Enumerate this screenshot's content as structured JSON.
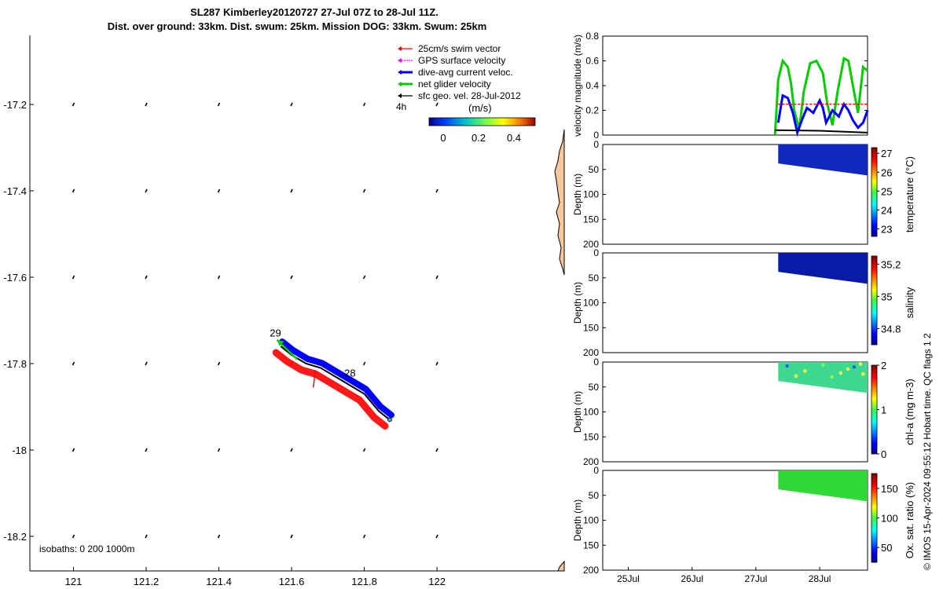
{
  "title_line1": "SL287 Kimberley20120727 27-Jul 07Z to 28-Jul 11Z.",
  "title_line2": "Dist. over ground: 33km. Dist. swum: 25km. Mission DOG: 33km. Swum: 25km",
  "side_note": "© IMOS 15-Apr-2024 09:55:12 Hobart time. QC flags 1  2",
  "colors": {
    "swim": "#ff0000",
    "gps": "#ff00ff",
    "current": "#0000ff",
    "net": "#00cc00",
    "geo": "#000000",
    "land": "#f8c89c",
    "point": "#2bc0c0"
  },
  "chart_data": [
    {
      "id": "map",
      "type": "scatter",
      "title": "",
      "xlabel": "",
      "ylabel": "",
      "xlim": [
        120.88,
        122.35
      ],
      "ylim": [
        -18.28,
        -17.04
      ],
      "xticks": [
        121,
        121.2,
        121.4,
        121.6,
        121.8,
        122
      ],
      "xtick_labels": [
        "121",
        "121.2",
        "121.4",
        "121.6",
        "121.8",
        "122"
      ],
      "yticks": [
        -17.2,
        -17.4,
        -17.6,
        -17.8,
        -18,
        -18.2
      ],
      "ytick_labels": [
        "-17.2",
        "-17.4",
        "-17.6",
        "-17.8",
        "-18",
        "-18.2"
      ],
      "legend": {
        "placement": "top-right",
        "entries": [
          {
            "label": "25cm/s swim vector",
            "color_key": "swim"
          },
          {
            "label": "GPS surface velocity",
            "color_key": "gps"
          },
          {
            "label": "dive-avg current veloc.",
            "color_key": "current"
          },
          {
            "label": "net glider velocity",
            "color_key": "net"
          },
          {
            "label": "sfc geo. vel. 28-Jul-2012",
            "color_key": "geo"
          }
        ],
        "note": "4h",
        "colorbar_label": "(m/s)",
        "colorbar_ticks": [
          "0",
          "0.2",
          "0.4"
        ],
        "colorbar_range": [
          -0.08,
          0.52
        ]
      },
      "isobaths_label": "isobaths: 0   200   1000m",
      "track_labels": [
        {
          "text": "29",
          "lon": 121.54,
          "lat": -17.737
        },
        {
          "text": "28",
          "lon": 121.745,
          "lat": -17.83
        }
      ],
      "geo_vectors": {
        "lons": [
          121,
          121.2,
          121.4,
          121.6,
          121.8,
          122
        ],
        "lats": [
          -17.2,
          -17.4,
          -17.6,
          -17.8,
          -18,
          -18.2
        ]
      },
      "track": {
        "lon": [
          121.87,
          121.84,
          121.8,
          121.76,
          121.72,
          121.68,
          121.64,
          121.6,
          121.57
        ],
        "lat": [
          -17.93,
          -17.91,
          -17.87,
          -17.85,
          -17.83,
          -17.81,
          -17.8,
          -17.78,
          -17.76
        ]
      },
      "net_vector": {
        "lon": [
          121.615,
          121.56
        ],
        "lat": [
          -17.79,
          -17.745
        ]
      },
      "swim_vector": {
        "lon": [
          121.665,
          121.66
        ],
        "lat": [
          -17.815,
          -17.855
        ]
      }
    },
    {
      "id": "velocity",
      "type": "line",
      "ylabel": "velocity magnitude (m/s)",
      "xlim": [
        24.6,
        28.75
      ],
      "ylim": [
        0,
        0.8
      ],
      "yticks": [
        0,
        0.2,
        0.4,
        0.6,
        0.8
      ],
      "ytick_labels": [
        "0",
        "0.2",
        "0.4",
        "0.6",
        "0.8"
      ],
      "series": [
        {
          "color_key": "net",
          "x": [
            27.3,
            27.35,
            27.42,
            27.5,
            27.55,
            27.6,
            27.68,
            27.75,
            27.85,
            27.95,
            28.05,
            28.12,
            28.2,
            28.28,
            28.38,
            28.45,
            28.52,
            28.6,
            28.68,
            28.75
          ],
          "y": [
            0.0,
            0.45,
            0.6,
            0.55,
            0.42,
            0.2,
            0.05,
            0.35,
            0.58,
            0.6,
            0.5,
            0.25,
            0.08,
            0.35,
            0.62,
            0.6,
            0.4,
            0.18,
            0.55,
            0.52
          ]
        },
        {
          "color_key": "current",
          "x": [
            27.35,
            27.42,
            27.5,
            27.58,
            27.65,
            27.72,
            27.8,
            27.9,
            28.0,
            28.05,
            28.1,
            28.2,
            28.3,
            28.38,
            28.45,
            28.52,
            28.6,
            28.68,
            28.75
          ],
          "y": [
            0.1,
            0.32,
            0.3,
            0.18,
            0.02,
            0.12,
            0.22,
            0.18,
            0.28,
            0.22,
            0.1,
            0.2,
            0.15,
            0.25,
            0.2,
            0.12,
            0.06,
            0.1,
            0.2
          ]
        },
        {
          "color_key": "swim",
          "dashed": true,
          "x": [
            27.35,
            28.75
          ],
          "y": [
            0.25,
            0.25
          ]
        },
        {
          "color_key": "geo",
          "x": [
            27.3,
            28.0,
            28.75
          ],
          "y": [
            0.04,
            0.035,
            0.02
          ]
        }
      ]
    },
    {
      "id": "temperature",
      "type": "heatmap",
      "ylabel": "Depth (m)",
      "ylim": [
        200,
        0
      ],
      "colorbar_label": "temperature (°C)",
      "colorbar_range": [
        22.6,
        27.3
      ],
      "colorbar_ticks": [
        "23",
        "24",
        "25",
        "26",
        "27"
      ],
      "colorbar_tick_values": [
        23,
        24,
        25,
        26,
        27
      ],
      "colormap": "parula",
      "data_region": {
        "x": [
          27.35,
          28.75
        ],
        "top": [
          0,
          0
        ],
        "bottom": [
          38,
          62
        ]
      }
    },
    {
      "id": "salinity",
      "type": "heatmap",
      "ylabel": "Depth (m)",
      "ylim": [
        200,
        0
      ],
      "colorbar_label": "salinity",
      "colorbar_range": [
        34.7,
        35.25
      ],
      "colorbar_ticks": [
        "34.8",
        "35",
        "35.2"
      ],
      "colorbar_tick_values": [
        34.8,
        35,
        35.2
      ],
      "colormap": "parula",
      "data_region": {
        "x": [
          27.35,
          28.75
        ],
        "top": [
          0,
          0
        ],
        "bottom": [
          38,
          62
        ]
      }
    },
    {
      "id": "chla",
      "type": "heatmap",
      "ylabel": "Depth (m)",
      "ylim": [
        200,
        0
      ],
      "colorbar_label": "chl-a (mg m-3)",
      "colorbar_range": [
        0,
        2
      ],
      "colorbar_ticks": [
        "0",
        "1",
        "2"
      ],
      "colorbar_tick_values": [
        0,
        1,
        2
      ],
      "colormap": "jet",
      "data_region": {
        "x": [
          27.35,
          28.75
        ],
        "top": [
          0,
          0
        ],
        "bottom": [
          38,
          62
        ]
      }
    },
    {
      "id": "oxygen",
      "type": "heatmap",
      "ylabel": "Depth (m)",
      "ylim": [
        200,
        0
      ],
      "colorbar_label": "Ox. sat. ratio (%)",
      "colorbar_range": [
        25,
        175
      ],
      "colorbar_ticks": [
        "50",
        "100",
        "150"
      ],
      "colorbar_tick_values": [
        50,
        100,
        150
      ],
      "colormap": "jet",
      "data_region": {
        "x": [
          27.35,
          28.75
        ],
        "top": [
          0,
          0
        ],
        "bottom": [
          38,
          62
        ]
      },
      "xticks": [
        25,
        26,
        27,
        28
      ],
      "xtick_labels": [
        "25Jul",
        "26Jul",
        "27Jul",
        "28Jul"
      ]
    }
  ],
  "depth_ticks": [
    0,
    50,
    100,
    150,
    200
  ],
  "depth_tick_labels": [
    "0",
    "50",
    "100",
    "150",
    "200"
  ]
}
